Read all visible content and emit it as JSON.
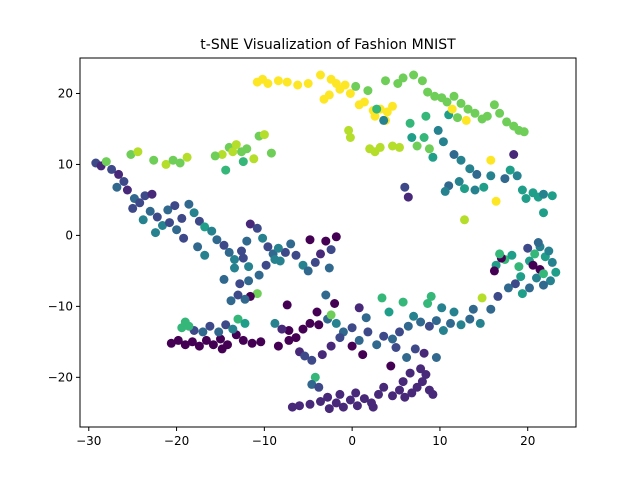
{
  "chart_data": {
    "type": "scatter",
    "title": "t-SNE Visualization of Fashion MNIST",
    "xlabel": "",
    "ylabel": "",
    "xlim": [
      -31.0,
      25.5
    ],
    "ylim": [
      -27.0,
      25.0
    ],
    "xticks": [
      -30,
      -20,
      -10,
      0,
      10,
      20
    ],
    "yticks": [
      -20,
      -10,
      0,
      10,
      20
    ],
    "grid": false,
    "legend": "none",
    "colormap": "viridis",
    "class_colors": [
      "#440154",
      "#482878",
      "#3e4989",
      "#31688e",
      "#26828e",
      "#1f9e89",
      "#35b779",
      "#6ece58",
      "#b5de2b",
      "#fde725"
    ],
    "points": [
      [
        -29.2,
        10.2,
        2
      ],
      [
        -28.6,
        9.8,
        1
      ],
      [
        -28.0,
        10.4,
        7
      ],
      [
        -27.4,
        9.3,
        2
      ],
      [
        -26.6,
        8.6,
        1
      ],
      [
        -26.0,
        7.6,
        2
      ],
      [
        -25.6,
        6.4,
        1
      ],
      [
        -24.8,
        5.2,
        3
      ],
      [
        -24.2,
        4.6,
        2
      ],
      [
        -23.6,
        5.6,
        2
      ],
      [
        -23.0,
        3.4,
        3
      ],
      [
        -22.2,
        2.6,
        2
      ],
      [
        -21.6,
        1.4,
        4
      ],
      [
        -20.8,
        1.8,
        2
      ],
      [
        -20.0,
        0.8,
        3
      ],
      [
        -19.4,
        2.4,
        2
      ],
      [
        -18.6,
        4.4,
        3
      ],
      [
        -18.0,
        3.2,
        4
      ],
      [
        -17.4,
        2.0,
        2
      ],
      [
        -16.8,
        1.2,
        5
      ],
      [
        -16.0,
        0.6,
        4
      ],
      [
        -15.4,
        -0.6,
        3
      ],
      [
        -14.6,
        -1.4,
        2
      ],
      [
        -14.0,
        -2.4,
        3
      ],
      [
        -13.4,
        -3.4,
        4
      ],
      [
        -12.6,
        -2.2,
        2
      ],
      [
        -12.0,
        -0.8,
        3
      ],
      [
        -11.6,
        1.6,
        1
      ],
      [
        -10.8,
        1.0,
        2
      ],
      [
        -10.2,
        -0.4,
        4
      ],
      [
        -9.6,
        -1.6,
        2
      ],
      [
        -9.0,
        -2.6,
        3
      ],
      [
        -8.2,
        -3.6,
        4
      ],
      [
        -7.6,
        -2.4,
        2
      ],
      [
        -7.0,
        -1.2,
        3
      ],
      [
        -6.4,
        -2.8,
        2
      ],
      [
        -5.6,
        -4.2,
        4
      ],
      [
        -5.0,
        -5.0,
        3
      ],
      [
        -4.2,
        -3.8,
        2
      ],
      [
        -3.6,
        -2.6,
        1
      ],
      [
        -3.0,
        -0.8,
        0
      ],
      [
        -2.4,
        -2.0,
        2
      ],
      [
        -1.8,
        -0.2,
        0
      ],
      [
        -4.8,
        -0.6,
        0
      ],
      [
        -2.6,
        -4.6,
        3
      ],
      [
        -25.2,
        11.4,
        7
      ],
      [
        -24.4,
        11.8,
        8
      ],
      [
        -22.6,
        10.6,
        7
      ],
      [
        -21.2,
        10.0,
        8
      ],
      [
        -20.4,
        10.6,
        7
      ],
      [
        -19.6,
        10.2,
        7
      ],
      [
        -18.8,
        11.0,
        8
      ],
      [
        -14.8,
        11.4,
        8
      ],
      [
        -14.0,
        12.4,
        7
      ],
      [
        -13.2,
        12.8,
        8
      ],
      [
        -12.6,
        11.8,
        7
      ],
      [
        -12.0,
        12.2,
        7
      ],
      [
        -10.6,
        14.0,
        7
      ],
      [
        -10.0,
        14.2,
        8
      ],
      [
        -14.4,
        9.2,
        6
      ],
      [
        -10.8,
        21.6,
        9
      ],
      [
        -10.2,
        22.0,
        9
      ],
      [
        -9.6,
        21.4,
        9
      ],
      [
        -8.4,
        21.8,
        9
      ],
      [
        -7.4,
        21.6,
        9
      ],
      [
        -6.2,
        21.2,
        9
      ],
      [
        -5.0,
        21.4,
        9
      ],
      [
        -3.6,
        22.6,
        9
      ],
      [
        -2.4,
        22.0,
        9
      ],
      [
        -1.8,
        21.4,
        9
      ],
      [
        -1.4,
        20.6,
        9
      ],
      [
        -2.6,
        19.8,
        9
      ],
      [
        -3.2,
        19.2,
        9
      ],
      [
        -0.8,
        21.2,
        9
      ],
      [
        -0.2,
        20.0,
        9
      ],
      [
        0.8,
        18.4,
        9
      ],
      [
        1.4,
        18.8,
        9
      ],
      [
        2.4,
        17.6,
        9
      ],
      [
        3.2,
        17.8,
        9
      ],
      [
        4.0,
        17.4,
        9
      ],
      [
        4.6,
        18.2,
        9
      ],
      [
        3.8,
        16.2,
        9
      ],
      [
        2.6,
        16.8,
        9
      ],
      [
        -0.4,
        14.8,
        8
      ],
      [
        -0.2,
        13.8,
        8
      ],
      [
        2.0,
        12.2,
        8
      ],
      [
        2.6,
        11.8,
        8
      ],
      [
        3.2,
        12.4,
        8
      ],
      [
        4.6,
        12.6,
        8
      ],
      [
        5.4,
        12.4,
        8
      ],
      [
        7.4,
        12.6,
        7
      ],
      [
        8.2,
        13.8,
        6
      ],
      [
        8.8,
        12.2,
        7
      ],
      [
        9.2,
        11.0,
        5
      ],
      [
        3.6,
        16.2,
        4
      ],
      [
        2.8,
        17.8,
        6
      ],
      [
        1.8,
        20.4,
        7
      ],
      [
        0.4,
        21.0,
        7
      ],
      [
        3.8,
        21.8,
        7
      ],
      [
        5.2,
        21.4,
        7
      ],
      [
        5.8,
        22.2,
        7
      ],
      [
        7.0,
        22.6,
        7
      ],
      [
        8.0,
        21.8,
        7
      ],
      [
        8.6,
        20.2,
        7
      ],
      [
        9.4,
        19.6,
        7
      ],
      [
        10.2,
        19.4,
        7
      ],
      [
        10.8,
        18.8,
        7
      ],
      [
        11.6,
        19.6,
        7
      ],
      [
        12.4,
        18.6,
        7
      ],
      [
        13.2,
        17.8,
        7
      ],
      [
        14.0,
        17.2,
        7
      ],
      [
        14.8,
        16.4,
        7
      ],
      [
        15.4,
        16.8,
        7
      ],
      [
        16.2,
        18.4,
        7
      ],
      [
        16.8,
        17.2,
        7
      ],
      [
        17.6,
        16.0,
        7
      ],
      [
        18.4,
        15.4,
        7
      ],
      [
        19.0,
        14.8,
        7
      ],
      [
        19.6,
        14.6,
        7
      ],
      [
        11.0,
        17.0,
        5
      ],
      [
        12.0,
        16.6,
        7
      ],
      [
        6.6,
        15.8,
        6
      ],
      [
        8.4,
        16.8,
        6
      ],
      [
        6.8,
        13.8,
        5
      ],
      [
        9.8,
        14.8,
        4
      ],
      [
        11.4,
        17.8,
        9
      ],
      [
        13.0,
        16.2,
        9
      ],
      [
        15.8,
        10.6,
        9
      ],
      [
        16.4,
        4.8,
        9
      ],
      [
        12.8,
        2.2,
        8
      ],
      [
        10.4,
        13.2,
        4
      ],
      [
        11.6,
        11.4,
        3
      ],
      [
        12.4,
        10.6,
        4
      ],
      [
        13.4,
        9.4,
        4
      ],
      [
        14.2,
        8.6,
        3
      ],
      [
        12.2,
        7.6,
        4
      ],
      [
        11.0,
        7.0,
        3
      ],
      [
        12.8,
        6.6,
        5
      ],
      [
        14.0,
        6.4,
        4
      ],
      [
        15.0,
        6.8,
        5
      ],
      [
        15.8,
        8.4,
        4
      ],
      [
        17.4,
        8.0,
        3
      ],
      [
        18.0,
        9.2,
        5
      ],
      [
        18.8,
        8.4,
        4
      ],
      [
        19.4,
        6.4,
        5
      ],
      [
        19.8,
        5.2,
        5
      ],
      [
        20.6,
        6.0,
        5
      ],
      [
        21.2,
        5.4,
        5
      ],
      [
        21.8,
        5.8,
        4
      ],
      [
        22.8,
        5.6,
        5
      ],
      [
        21.8,
        3.2,
        5
      ],
      [
        18.4,
        11.4,
        1
      ],
      [
        6.0,
        6.8,
        2
      ],
      [
        6.4,
        5.4,
        1
      ],
      [
        10.6,
        6.2,
        4
      ],
      [
        16.4,
        -4.2,
        5
      ],
      [
        17.4,
        -3.4,
        6
      ],
      [
        18.2,
        -2.8,
        5
      ],
      [
        19.0,
        -4.4,
        6
      ],
      [
        20.2,
        -3.6,
        5
      ],
      [
        20.8,
        -2.6,
        6
      ],
      [
        21.4,
        -1.6,
        4
      ],
      [
        22.0,
        -3.0,
        5
      ],
      [
        22.8,
        -3.8,
        4
      ],
      [
        23.2,
        -5.2,
        5
      ],
      [
        22.6,
        -6.4,
        4
      ],
      [
        21.8,
        -7.0,
        3
      ],
      [
        21.0,
        -6.0,
        4
      ],
      [
        20.2,
        -7.4,
        3
      ],
      [
        19.4,
        -8.2,
        5
      ],
      [
        18.6,
        -6.8,
        2
      ],
      [
        17.8,
        -7.4,
        3
      ],
      [
        16.6,
        -8.6,
        2
      ],
      [
        15.8,
        -10.4,
        3
      ],
      [
        14.6,
        -12.4,
        4
      ],
      [
        13.4,
        -11.8,
        3
      ],
      [
        12.4,
        -12.6,
        4
      ],
      [
        11.2,
        -12.4,
        3
      ],
      [
        10.4,
        -13.4,
        4
      ],
      [
        9.6,
        -12.0,
        3
      ],
      [
        8.8,
        -12.8,
        2
      ],
      [
        7.8,
        -12.2,
        3
      ],
      [
        7.0,
        -11.4,
        4
      ],
      [
        6.4,
        -12.8,
        3
      ],
      [
        5.4,
        -13.6,
        2
      ],
      [
        4.6,
        -14.6,
        3
      ],
      [
        3.6,
        -14.2,
        2
      ],
      [
        2.8,
        -15.4,
        3
      ],
      [
        1.8,
        -13.6,
        2
      ],
      [
        0.8,
        -14.8,
        3
      ],
      [
        0.0,
        -13.0,
        2
      ],
      [
        -1.0,
        -13.6,
        3
      ],
      [
        -1.8,
        -12.4,
        4
      ],
      [
        -2.8,
        -11.8,
        3
      ],
      [
        -3.8,
        -12.6,
        0
      ],
      [
        -4.8,
        -12.4,
        0
      ],
      [
        -5.6,
        -13.2,
        0
      ],
      [
        -6.4,
        -14.4,
        0
      ],
      [
        -7.2,
        -13.4,
        0
      ],
      [
        -8.0,
        -13.2,
        1
      ],
      [
        -8.8,
        -12.4,
        4
      ],
      [
        -7.4,
        -9.8,
        0
      ],
      [
        -4.0,
        -10.8,
        0
      ],
      [
        -2.4,
        -11.2,
        7
      ],
      [
        8.6,
        -9.6,
        6
      ],
      [
        10.2,
        -10.2,
        4
      ],
      [
        11.6,
        -10.8,
        4
      ],
      [
        13.8,
        -10.4,
        3
      ],
      [
        14.8,
        -8.8,
        8
      ],
      [
        9.0,
        -8.6,
        6
      ],
      [
        -7.2,
        -14.8,
        0
      ],
      [
        -6.0,
        -16.4,
        1
      ],
      [
        -5.4,
        -17.0,
        2
      ],
      [
        -4.6,
        -17.6,
        2
      ],
      [
        -3.4,
        -16.8,
        1
      ],
      [
        -2.4,
        -15.6,
        1
      ],
      [
        -8.4,
        -15.6,
        0
      ],
      [
        0.0,
        -15.6,
        0
      ],
      [
        1.2,
        -16.8,
        0
      ],
      [
        4.4,
        -18.4,
        0
      ],
      [
        -10.4,
        -15.0,
        0
      ],
      [
        -11.4,
        -15.2,
        0
      ],
      [
        -12.4,
        -14.8,
        0
      ],
      [
        -13.2,
        -14.0,
        0
      ],
      [
        -14.2,
        -15.4,
        0
      ],
      [
        -15.0,
        -14.6,
        0
      ],
      [
        -15.8,
        -15.4,
        0
      ],
      [
        -16.6,
        -14.8,
        0
      ],
      [
        -17.4,
        -15.6,
        0
      ],
      [
        -18.2,
        -15.0,
        0
      ],
      [
        -19.0,
        -15.4,
        0
      ],
      [
        -19.8,
        -14.8,
        0
      ],
      [
        -20.6,
        -15.2,
        0
      ],
      [
        -18.0,
        -13.4,
        2
      ],
      [
        -17.0,
        -13.6,
        3
      ],
      [
        -16.2,
        -12.8,
        2
      ],
      [
        -15.2,
        -13.6,
        3
      ],
      [
        -14.4,
        -12.6,
        2
      ],
      [
        -13.6,
        -13.2,
        4
      ],
      [
        -19.4,
        -13.0,
        6
      ],
      [
        -19.0,
        -12.2,
        6
      ],
      [
        -18.6,
        -12.8,
        6
      ],
      [
        -13.0,
        -11.8,
        6
      ],
      [
        -12.2,
        -12.4,
        5
      ],
      [
        -14.8,
        -16.0,
        0
      ],
      [
        -6.8,
        -24.2,
        1
      ],
      [
        -6.0,
        -24.0,
        1
      ],
      [
        -4.8,
        -23.8,
        1
      ],
      [
        -3.6,
        -23.4,
        1
      ],
      [
        -2.6,
        -24.4,
        1
      ],
      [
        -1.8,
        -23.6,
        1
      ],
      [
        -1.0,
        -24.2,
        1
      ],
      [
        -0.2,
        -23.2,
        1
      ],
      [
        0.6,
        -24.0,
        1
      ],
      [
        1.4,
        -23.0,
        1
      ],
      [
        2.2,
        -23.6,
        1
      ],
      [
        3.0,
        -22.4,
        1
      ],
      [
        3.6,
        -21.4,
        1
      ],
      [
        4.6,
        -22.6,
        1
      ],
      [
        5.4,
        -21.8,
        1
      ],
      [
        6.0,
        -22.8,
        1
      ],
      [
        6.8,
        -22.2,
        1
      ],
      [
        7.4,
        -21.4,
        1
      ],
      [
        8.0,
        -20.6,
        1
      ],
      [
        8.8,
        -21.8,
        1
      ],
      [
        9.2,
        -22.4,
        1
      ],
      [
        8.4,
        -19.6,
        1
      ],
      [
        7.8,
        -18.8,
        1
      ],
      [
        6.6,
        -19.4,
        1
      ],
      [
        5.8,
        -20.6,
        1
      ],
      [
        -1.4,
        -22.4,
        1
      ],
      [
        -2.8,
        -22.8,
        1
      ],
      [
        0.4,
        -22.2,
        1
      ],
      [
        2.4,
        -24.2,
        1
      ],
      [
        -4.2,
        -20.0,
        6
      ],
      [
        -4.6,
        -21.0,
        3
      ],
      [
        -3.8,
        -21.4,
        2
      ],
      [
        -10.8,
        -8.2,
        7
      ],
      [
        -11.6,
        -8.6,
        0
      ],
      [
        -12.2,
        -9.0,
        3
      ],
      [
        -13.0,
        -8.4,
        2
      ],
      [
        -13.8,
        -9.2,
        3
      ],
      [
        -12.8,
        -6.8,
        2
      ],
      [
        -14.6,
        -6.2,
        3
      ],
      [
        -9.8,
        -4.2,
        2
      ],
      [
        -8.4,
        -1.8,
        4
      ],
      [
        -8.8,
        -3.4,
        4
      ],
      [
        -13.4,
        -4.6,
        4
      ],
      [
        -12.4,
        -3.2,
        2
      ],
      [
        -11.8,
        -4.4,
        4
      ],
      [
        -10.6,
        -5.6,
        3
      ],
      [
        -11.8,
        -6.4,
        3
      ],
      [
        -16.8,
        -2.8,
        4
      ],
      [
        -17.6,
        -1.6,
        3
      ],
      [
        -19.2,
        -0.4,
        2
      ],
      [
        -22.4,
        0.4,
        4
      ],
      [
        -21.0,
        3.6,
        3
      ],
      [
        -20.2,
        4.2,
        2
      ],
      [
        -22.8,
        5.8,
        1
      ],
      [
        -26.8,
        6.8,
        3
      ],
      [
        16.2,
        -5.0,
        0
      ],
      [
        17.0,
        -3.2,
        0
      ],
      [
        21.4,
        -4.8,
        0
      ],
      [
        20.6,
        -4.2,
        0
      ],
      [
        16.8,
        -2.6,
        6
      ],
      [
        19.2,
        -5.8,
        5
      ],
      [
        21.8,
        -5.4,
        6
      ],
      [
        22.4,
        -2.2,
        4
      ],
      [
        21.2,
        -1.0,
        3
      ],
      [
        20.0,
        -1.8,
        2
      ],
      [
        7.2,
        -16.0,
        2
      ],
      [
        8.2,
        -16.6,
        1
      ],
      [
        9.6,
        -17.2,
        3
      ],
      [
        6.2,
        -17.2,
        3
      ],
      [
        5.0,
        -15.8,
        2
      ],
      [
        -1.4,
        -14.4,
        2
      ],
      [
        -2.0,
        -9.6,
        0
      ],
      [
        -3.0,
        -8.4,
        3
      ],
      [
        0.8,
        -10.2,
        1
      ],
      [
        1.6,
        -11.6,
        3
      ],
      [
        3.4,
        -8.8,
        6
      ],
      [
        4.2,
        -10.8,
        5
      ],
      [
        5.8,
        -9.4,
        6
      ],
      [
        -23.8,
        2.2,
        4
      ],
      [
        -25.0,
        3.8,
        2
      ],
      [
        -15.6,
        11.2,
        7
      ],
      [
        -13.6,
        11.8,
        8
      ],
      [
        -11.2,
        10.8,
        8
      ],
      [
        -9.2,
        11.6,
        7
      ],
      [
        -12.4,
        10.4,
        6
      ]
    ]
  }
}
